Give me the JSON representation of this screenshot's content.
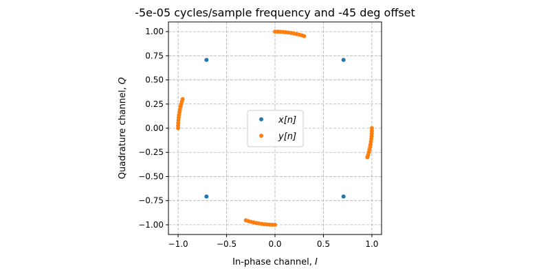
{
  "chart_data": {
    "type": "scatter",
    "title": "-5e-05 cycles/sample frequency and -45 deg offset",
    "xlabel": "In-phase channel, ",
    "xlabel_var": "I",
    "ylabel": "Quadrature channel, ",
    "ylabel_var": "Q",
    "xlim": [
      -1.1,
      1.1
    ],
    "ylim": [
      -1.1,
      1.1
    ],
    "grid": true,
    "legend_position": "center",
    "xticks": [
      -1.0,
      -0.5,
      0.0,
      0.5,
      1.0
    ],
    "xtick_labels": [
      "−1.0",
      "−0.5",
      "0.0",
      "0.5",
      "1.0"
    ],
    "yticks": [
      1.0,
      0.75,
      0.5,
      0.25,
      0.0,
      -0.25,
      -0.5,
      -0.75,
      -1.0
    ],
    "ytick_labels": [
      "1.00",
      "0.75",
      "0.50",
      "0.25",
      "0.00",
      "−0.25",
      "−0.50",
      "−0.75",
      "−1.00"
    ],
    "series": [
      {
        "name": "x[n]",
        "color": "#1f77b4",
        "x": [
          0.7071,
          -0.7071,
          -0.7071,
          0.7071
        ],
        "y": [
          0.7071,
          0.7071,
          -0.7071,
          -0.7071
        ]
      },
      {
        "name": "y[n]",
        "color": "#ff7f0e",
        "x": [
          1.0,
          0.9996,
          0.9984,
          0.9965,
          0.9938,
          0.9903,
          0.986,
          0.981,
          0.9751,
          0.9686,
          0.9613,
          0.9537,
          0.0,
          0.0279,
          0.0558,
          0.0837,
          0.1115,
          0.1392,
          0.1668,
          0.1942,
          0.2215,
          0.2487,
          0.2756,
          0.3007,
          -1.0,
          -0.9996,
          -0.9984,
          -0.9965,
          -0.9938,
          -0.9903,
          -0.986,
          -0.981,
          -0.9751,
          -0.9686,
          -0.9613,
          -0.9537,
          0.0,
          -0.0279,
          -0.0558,
          -0.0837,
          -0.1115,
          -0.1392,
          -0.1668,
          -0.1942,
          -0.2215,
          -0.2487,
          -0.2756,
          -0.3007
        ],
        "y": [
          0.0,
          -0.0279,
          -0.0558,
          -0.0837,
          -0.1115,
          -0.1392,
          -0.1668,
          -0.1942,
          -0.2215,
          -0.2487,
          -0.2756,
          -0.3007,
          1.0,
          0.9996,
          0.9984,
          0.9965,
          0.9938,
          0.9903,
          0.986,
          0.981,
          0.9751,
          0.9686,
          0.9613,
          0.9537,
          0.0,
          0.0279,
          0.0558,
          0.0837,
          0.1115,
          0.1392,
          0.1668,
          0.1942,
          0.2215,
          0.2487,
          0.2756,
          0.3007,
          -1.0,
          -0.9996,
          -0.9984,
          -0.9965,
          -0.9938,
          -0.9903,
          -0.986,
          -0.981,
          -0.9751,
          -0.9686,
          -0.9613,
          -0.9537
        ]
      }
    ]
  }
}
